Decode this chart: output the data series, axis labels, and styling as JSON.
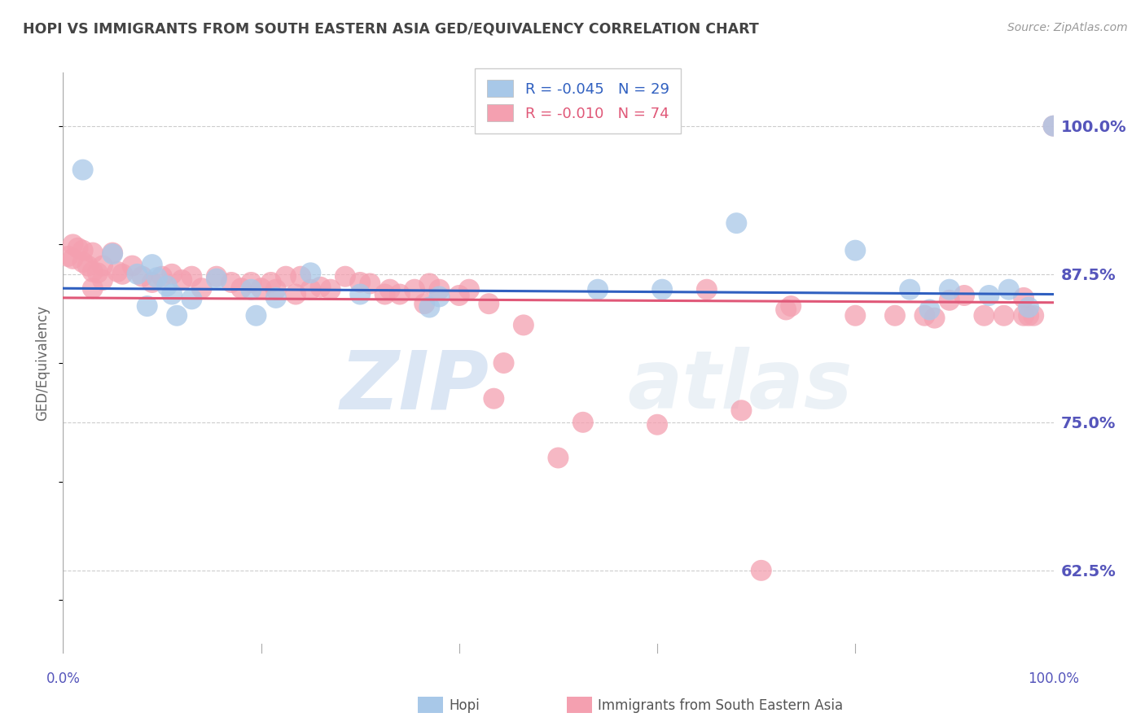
{
  "title": "HOPI VS IMMIGRANTS FROM SOUTH EASTERN ASIA GED/EQUIVALENCY CORRELATION CHART",
  "source": "Source: ZipAtlas.com",
  "ylabel": "GED/Equivalency",
  "ytick_labels": [
    "100.0%",
    "87.5%",
    "75.0%",
    "62.5%"
  ],
  "ytick_values": [
    1.0,
    0.875,
    0.75,
    0.625
  ],
  "xlim": [
    0.0,
    1.0
  ],
  "ylim": [
    0.555,
    1.045
  ],
  "legend_blue_r": "-0.045",
  "legend_blue_n": "29",
  "legend_pink_r": "-0.010",
  "legend_pink_n": "74",
  "legend_label_blue": "Hopi",
  "legend_label_pink": "Immigrants from South Eastern Asia",
  "blue_color": "#a8c8e8",
  "pink_color": "#f4a0b0",
  "blue_line_color": "#3060c0",
  "pink_line_color": "#e05878",
  "blue_line_y0": 0.863,
  "blue_line_y1": 0.858,
  "pink_line_y0": 0.855,
  "pink_line_y1": 0.851,
  "hopi_x": [
    0.02,
    0.05,
    0.075,
    0.085,
    0.09,
    0.095,
    0.105,
    0.11,
    0.115,
    0.13,
    0.155,
    0.19,
    0.195,
    0.215,
    0.25,
    0.3,
    0.37,
    0.38,
    0.54,
    0.605,
    0.68,
    0.8,
    0.855,
    0.875,
    0.895,
    0.935,
    0.955,
    0.975,
    1.0
  ],
  "hopi_y": [
    0.963,
    0.892,
    0.875,
    0.848,
    0.883,
    0.872,
    0.865,
    0.858,
    0.84,
    0.854,
    0.871,
    0.862,
    0.84,
    0.855,
    0.876,
    0.858,
    0.847,
    0.856,
    0.862,
    0.862,
    0.918,
    0.895,
    0.862,
    0.845,
    0.862,
    0.857,
    0.862,
    0.847,
    1.0
  ],
  "sea_x": [
    0.005,
    0.01,
    0.01,
    0.015,
    0.02,
    0.02,
    0.025,
    0.03,
    0.03,
    0.03,
    0.035,
    0.04,
    0.04,
    0.05,
    0.055,
    0.06,
    0.07,
    0.08,
    0.09,
    0.1,
    0.11,
    0.12,
    0.13,
    0.14,
    0.155,
    0.17,
    0.18,
    0.19,
    0.2,
    0.21,
    0.215,
    0.225,
    0.235,
    0.24,
    0.25,
    0.26,
    0.27,
    0.285,
    0.3,
    0.31,
    0.325,
    0.33,
    0.34,
    0.355,
    0.365,
    0.37,
    0.38,
    0.4,
    0.41,
    0.43,
    0.435,
    0.445,
    0.465,
    0.5,
    0.525,
    0.6,
    0.65,
    0.685,
    0.705,
    0.73,
    0.735,
    0.8,
    0.84,
    0.87,
    0.88,
    0.895,
    0.91,
    0.93,
    0.95,
    0.97,
    0.97,
    0.975,
    0.98,
    1.0
  ],
  "sea_y": [
    0.89,
    0.9,
    0.888,
    0.897,
    0.895,
    0.885,
    0.882,
    0.893,
    0.877,
    0.863,
    0.876,
    0.882,
    0.87,
    0.893,
    0.877,
    0.875,
    0.882,
    0.873,
    0.868,
    0.873,
    0.875,
    0.87,
    0.873,
    0.863,
    0.873,
    0.868,
    0.863,
    0.868,
    0.863,
    0.868,
    0.862,
    0.873,
    0.858,
    0.873,
    0.862,
    0.864,
    0.862,
    0.873,
    0.868,
    0.867,
    0.858,
    0.862,
    0.858,
    0.862,
    0.85,
    0.867,
    0.862,
    0.857,
    0.862,
    0.85,
    0.77,
    0.8,
    0.832,
    0.72,
    0.75,
    0.748,
    0.862,
    0.76,
    0.625,
    0.845,
    0.848,
    0.84,
    0.84,
    0.84,
    0.838,
    0.853,
    0.857,
    0.84,
    0.84,
    0.855,
    0.84,
    0.84,
    0.84,
    1.0
  ],
  "background_color": "#ffffff",
  "grid_color": "#cccccc",
  "title_color": "#444444",
  "axis_color": "#5555bb",
  "watermark_zip": "ZIP",
  "watermark_atlas": "atlas"
}
